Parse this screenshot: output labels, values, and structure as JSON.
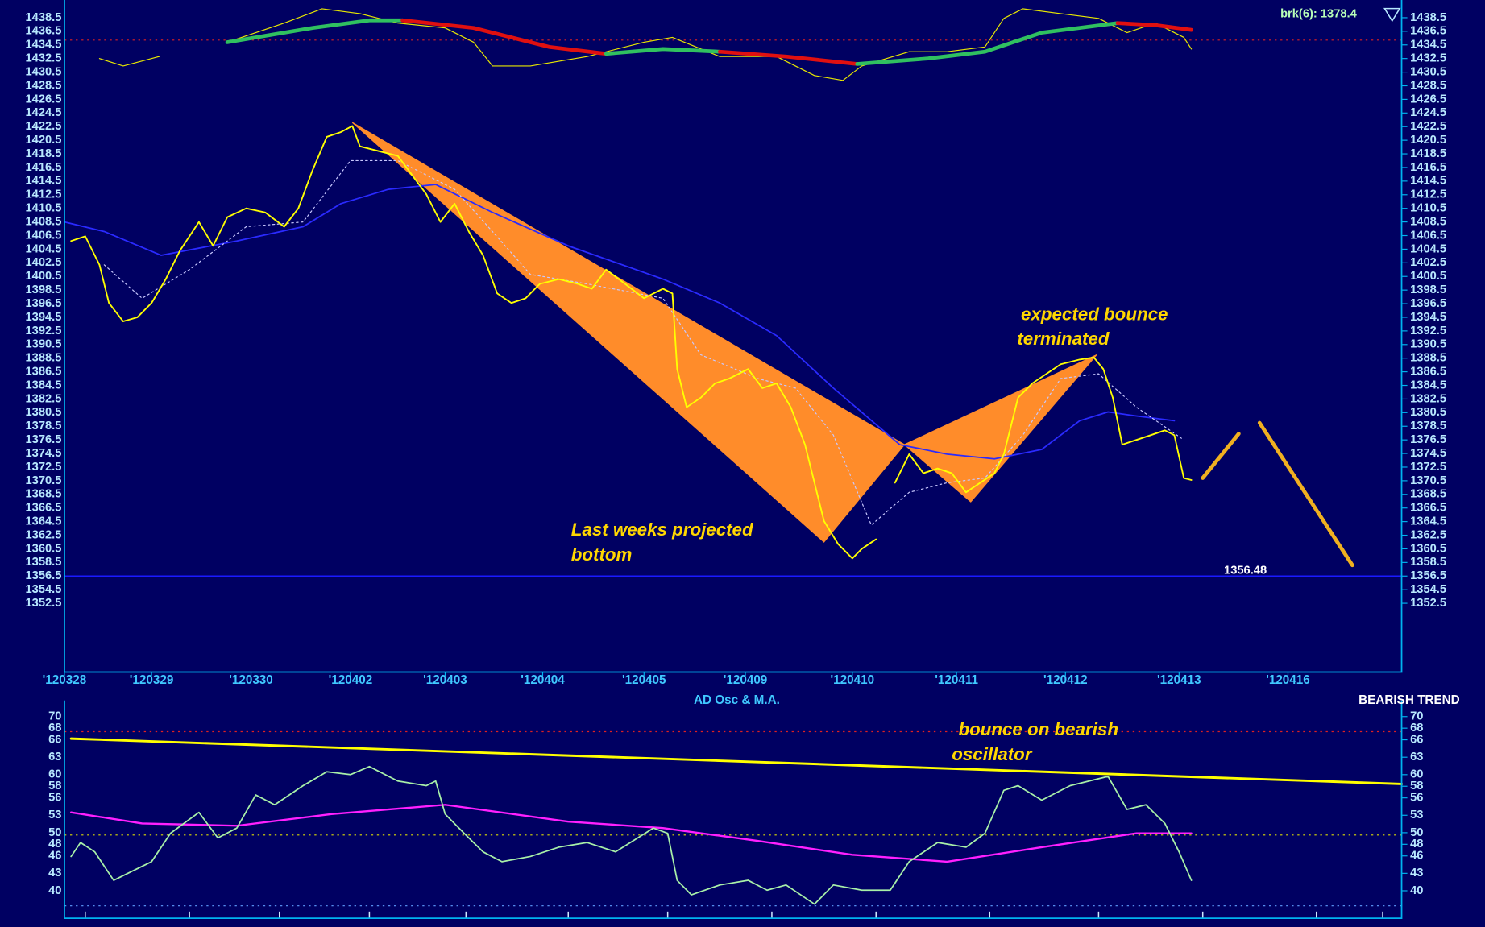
{
  "chart_data": [
    {
      "type": "line",
      "indicator_label": "brk(6): 1378.4",
      "background": "#000062",
      "axis_color": "#00b4f0",
      "xlim": [
        0,
        141.2
      ],
      "xticks": [
        {
          "value": 0,
          "label": "'120328"
        },
        {
          "value": 9.2,
          "label": "'120329"
        },
        {
          "value": 19.7,
          "label": "'120330"
        },
        {
          "value": 30.2,
          "label": "'120402"
        },
        {
          "value": 40.2,
          "label": "'120403"
        },
        {
          "value": 50.5,
          "label": "'120404"
        },
        {
          "value": 61.2,
          "label": "'120405"
        },
        {
          "value": 71.9,
          "label": "'120409"
        },
        {
          "value": 83.2,
          "label": "'120410"
        },
        {
          "value": 94.2,
          "label": "'120411"
        },
        {
          "value": 105.7,
          "label": "'120412"
        },
        {
          "value": 117.7,
          "label": "'120413"
        },
        {
          "value": 129.2,
          "label": "'120416"
        }
      ],
      "ylim": [
        1342.4,
        1440.4
      ],
      "yticks": [
        1352.5,
        1354.5,
        1356.5,
        1358.5,
        1360.5,
        1362.5,
        1364.5,
        1366.5,
        1368.5,
        1370.5,
        1372.5,
        1374.5,
        1376.5,
        1378.5,
        1380.5,
        1382.5,
        1384.5,
        1386.5,
        1388.5,
        1390.5,
        1392.5,
        1394.5,
        1396.5,
        1398.5,
        1400.5,
        1402.5,
        1404.5,
        1406.5,
        1408.5,
        1410.5,
        1412.5,
        1414.5,
        1416.5,
        1418.5,
        1420.5,
        1422.5,
        1424.5,
        1426.5,
        1428.5,
        1430.5,
        1432.5,
        1434.5,
        1436.5,
        1438.5
      ],
      "patterns": [
        {
          "color": "#ff8c2a",
          "x": [
            30.4,
            80.2,
            88.7
          ],
          "values": [
            1423.1,
            1361.5,
            1375.8
          ]
        },
        {
          "color": "#ff8c2a",
          "x": [
            88.7,
            95.7,
            109.0
          ],
          "values": [
            1375.8,
            1367.4,
            1389.0
          ]
        }
      ],
      "series": [
        {
          "color": "#2a2aff",
          "width": 1.5,
          "x": [
            0,
            4.2,
            10.2,
            18.2,
            25.2,
            29.2,
            34.2,
            39.2,
            45.2,
            53.2,
            63.2,
            69.2,
            75.2,
            81.2,
            88.2,
            93.2,
            98.2,
            103.2,
            107.2,
            110.2,
            113.2,
            117.2
          ],
          "values": [
            1408.5,
            1407.1,
            1403.6,
            1405.7,
            1407.8,
            1411.2,
            1413.3,
            1414.0,
            1409.9,
            1405.0,
            1400.1,
            1396.6,
            1391.8,
            1384.1,
            1375.8,
            1374.4,
            1373.7,
            1375.1,
            1379.3,
            1380.6,
            1380.0,
            1379.3
          ]
        },
        {
          "color": "#c8c8ff",
          "width": 1,
          "dash": true,
          "x": [
            4.2,
            8.2,
            13.2,
            19.2,
            25.2,
            30.2,
            35.2,
            41.2,
            45.2,
            49.2,
            55.2,
            63.2,
            67.2,
            73.2,
            77.2,
            81.2,
            85.2,
            89.2,
            93.2,
            97.2,
            101.2,
            105.2,
            109.2,
            113.2,
            118.2
          ],
          "values": [
            1402.2,
            1397.3,
            1401.5,
            1407.8,
            1408.5,
            1417.5,
            1417.5,
            1413.3,
            1407.1,
            1400.8,
            1399.4,
            1397.3,
            1389.0,
            1385.5,
            1384.1,
            1377.2,
            1364.0,
            1368.8,
            1370.2,
            1370.9,
            1377.2,
            1385.5,
            1386.2,
            1381.3,
            1376.5
          ]
        },
        {
          "color": "#ffff00",
          "width": 1.6,
          "x": [
            0.7,
            2.2,
            3.7,
            4.7,
            6.2,
            7.7,
            9.2,
            10.7,
            12.2,
            14.2,
            15.7,
            17.2,
            19.2,
            21.2,
            23.2,
            24.7,
            26.2,
            27.7,
            29.2,
            30.4,
            31.2,
            33.2,
            35.2,
            36.7,
            38.2,
            39.7,
            41.2,
            42.7,
            44.2,
            45.7,
            47.2,
            48.7,
            50.2,
            52.2,
            54.2,
            55.7,
            57.2,
            59.2,
            61.2,
            63.2,
            64.2,
            64.7,
            65.7,
            67.2,
            68.7,
            70.2,
            72.2,
            73.7,
            75.2,
            76.7,
            78.2,
            79.2,
            80.2,
            81.7,
            83.2,
            84.2,
            85.7,
            86.7,
            87.7,
            89.2,
            90.7,
            92.2,
            93.7,
            95.2,
            96.7,
            98.2,
            99.2,
            100.7,
            102.2,
            103.7,
            105.2,
            107.2,
            108.7,
            109.7,
            110.7,
            111.7,
            113.2,
            114.7,
            116.2,
            117.2,
            118.2,
            119.0
          ],
          "values": [
            1405.7,
            1406.4,
            1402.2,
            1396.6,
            1393.9,
            1394.5,
            1396.6,
            1400.1,
            1404.3,
            1408.5,
            1405.0,
            1409.2,
            1410.5,
            1409.9,
            1407.8,
            1410.5,
            1416.1,
            1421.0,
            1421.7,
            1422.6,
            1419.6,
            1418.9,
            1418.2,
            1415.4,
            1412.6,
            1408.5,
            1411.2,
            1407.1,
            1403.6,
            1398.0,
            1396.6,
            1397.3,
            1399.4,
            1400.1,
            1399.4,
            1398.7,
            1401.5,
            1399.4,
            1397.3,
            1398.7,
            1398.0,
            1386.9,
            1381.3,
            1382.7,
            1384.8,
            1385.5,
            1386.9,
            1384.1,
            1384.8,
            1381.3,
            1375.8,
            1370.2,
            1364.6,
            1361.2,
            1359.1,
            1360.5,
            1361.9,
            null,
            1370.2,
            1374.4,
            1371.6,
            1372.3,
            1371.6,
            1368.8,
            1370.2,
            1371.6,
            1374.4,
            1382.7,
            1384.8,
            1386.2,
            1387.6,
            1388.3,
            1388.6,
            1386.9,
            1382.7,
            1375.8,
            1376.5,
            1377.2,
            1377.9,
            1377.2,
            1370.9,
            1370.6
          ]
        },
        {
          "color": "#e8e800",
          "width": 1,
          "x": [
            3.7,
            6.2,
            10.0,
            14.0,
            17.2,
            23.2,
            27.2,
            31.2,
            35.2,
            40.2,
            43.2,
            45.2,
            49.2,
            55.2,
            61.2,
            64.2,
            69.2,
            75.2,
            79.2,
            82.2,
            84.2,
            89.2,
            93.2,
            97.2,
            99.2,
            101.2,
            105.2,
            109.2,
            112.2,
            115.2,
            118.2,
            119.0
          ],
          "values": [
            1432.5,
            1431.4,
            1432.8,
            null,
            1434.9,
            1437.7,
            1439.8,
            1439.1,
            1437.7,
            1437.0,
            1434.9,
            1431.4,
            1431.4,
            1432.8,
            1434.9,
            1435.6,
            1432.8,
            1432.8,
            1430.0,
            1429.3,
            1431.4,
            1433.5,
            1433.5,
            1434.2,
            1438.4,
            1439.8,
            1439.1,
            1438.4,
            1436.3,
            1437.7,
            1435.6,
            1433.9
          ]
        },
        {
          "color": "#30c060",
          "width": 4,
          "x": [
            17.2,
            26.2,
            32.2,
            35.7
          ],
          "values": [
            1434.9,
            1437.0,
            1438.1,
            1438.1
          ]
        },
        {
          "color": "#e01010",
          "width": 4,
          "x": [
            35.7,
            43.2,
            51.2,
            57.2
          ],
          "values": [
            1438.1,
            1437.0,
            1434.2,
            1433.2
          ]
        },
        {
          "color": "#30c060",
          "width": 4,
          "x": [
            57.2,
            63.2,
            69.2
          ],
          "values": [
            1433.2,
            1433.9,
            1433.5
          ]
        },
        {
          "color": "#e01010",
          "width": 4,
          "x": [
            69.2,
            76.2,
            83.7
          ],
          "values": [
            1433.5,
            1432.8,
            1431.7
          ]
        },
        {
          "color": "#30c060",
          "width": 4,
          "x": [
            83.7,
            91.2,
            97.2,
            103.2,
            111.2
          ],
          "values": [
            1431.7,
            1432.5,
            1433.5,
            1436.3,
            1437.7
          ]
        },
        {
          "color": "#e01010",
          "width": 4,
          "x": [
            111.2,
            115.2,
            119.0
          ],
          "values": [
            1437.7,
            1437.4,
            1436.7
          ]
        },
        {
          "color": "#f0b020",
          "width": 4,
          "x": [
            120.2,
            124.0
          ],
          "values": [
            1370.9,
            1377.4
          ]
        },
        {
          "color": "#f0b020",
          "width": 4,
          "x": [
            126.2,
            136.0
          ],
          "values": [
            1379.0,
            1358.1
          ]
        }
      ],
      "reference_lines": [
        {
          "value": 1356.48,
          "color": "#1a1aff",
          "labeled": true
        },
        {
          "value": 1435.2,
          "color": "#e02020",
          "dash": true
        }
      ],
      "annotations": [
        [
          "expected bounce",
          "terminated"
        ],
        [
          "Last weeks projected",
          "bottom"
        ]
      ]
    },
    {
      "type": "line",
      "title": "AD Osc & M.A.",
      "subtitle": "BEARISH TREND",
      "background": "#000062",
      "axis_color": "#00b4f0",
      "xlim": [
        0,
        141.2
      ],
      "xticks": [
        2.2,
        13.2,
        22.7,
        32.2,
        42.4,
        53.2,
        63.7,
        74.7,
        85.7,
        97.7,
        109.2,
        120.2,
        132.2,
        139.2
      ],
      "ylim": [
        35.27,
        71.96
      ],
      "yticks": [
        40,
        43,
        46,
        48,
        50,
        53,
        56,
        58,
        60,
        63,
        66,
        68,
        70
      ],
      "series": [
        {
          "color": "#ffff00",
          "width": 2.5,
          "x": [
            0.7,
            141.2
          ],
          "values": [
            66.2,
            58.4
          ]
        },
        {
          "color": "#ff20ff",
          "width": 2,
          "x": [
            0.7,
            8.2,
            18.2,
            28.2,
            40.2,
            53.2,
            63.2,
            73.2,
            83.2,
            93.2,
            103.2,
            113.2,
            119.0
          ],
          "values": [
            53.5,
            51.6,
            51.2,
            53.2,
            54.8,
            51.9,
            50.8,
            48.6,
            46.2,
            45.0,
            47.5,
            49.9,
            49.9
          ]
        },
        {
          "color": "#a8f0a8",
          "width": 1.5,
          "x": [
            0.7,
            1.7,
            3.2,
            5.2,
            7.2,
            9.2,
            11.2,
            14.2,
            16.2,
            18.2,
            20.2,
            22.2,
            25.2,
            27.7,
            30.2,
            32.2,
            35.2,
            38.2,
            39.2,
            40.2,
            42.2,
            44.2,
            46.2,
            49.2,
            52.2,
            55.2,
            58.2,
            62.2,
            63.7,
            64.7,
            66.2,
            69.2,
            72.2,
            74.2,
            76.2,
            79.2,
            81.2,
            84.2,
            87.2,
            89.2,
            92.2,
            95.2,
            97.2,
            99.2,
            100.7,
            103.2,
            106.2,
            108.2,
            110.2,
            112.2,
            114.2,
            116.2,
            117.7,
            119.0
          ],
          "values": [
            45.9,
            48.3,
            46.7,
            41.8,
            43.4,
            45.0,
            49.9,
            53.5,
            49.1,
            50.8,
            56.5,
            54.8,
            58.1,
            60.5,
            60.0,
            61.4,
            58.9,
            58.1,
            58.9,
            53.2,
            49.9,
            46.7,
            45.0,
            45.9,
            47.5,
            48.3,
            46.7,
            50.8,
            49.9,
            41.8,
            39.3,
            41.0,
            41.8,
            40.1,
            41.0,
            37.7,
            41.0,
            40.1,
            40.1,
            45.0,
            48.3,
            47.5,
            49.9,
            57.3,
            58.1,
            55.6,
            58.1,
            58.9,
            59.7,
            54.0,
            54.8,
            51.6,
            46.7,
            41.8
          ]
        }
      ],
      "reference_lines": [
        {
          "value": 67.4,
          "color": "#e02020",
          "dash": true
        },
        {
          "value": 49.6,
          "color": "#e0e000",
          "dash": true
        },
        {
          "value": 37.4,
          "color": "#60a0ff",
          "dash": true
        }
      ],
      "annotations": [
        [
          "bounce on bearish",
          "oscillator"
        ]
      ]
    }
  ]
}
